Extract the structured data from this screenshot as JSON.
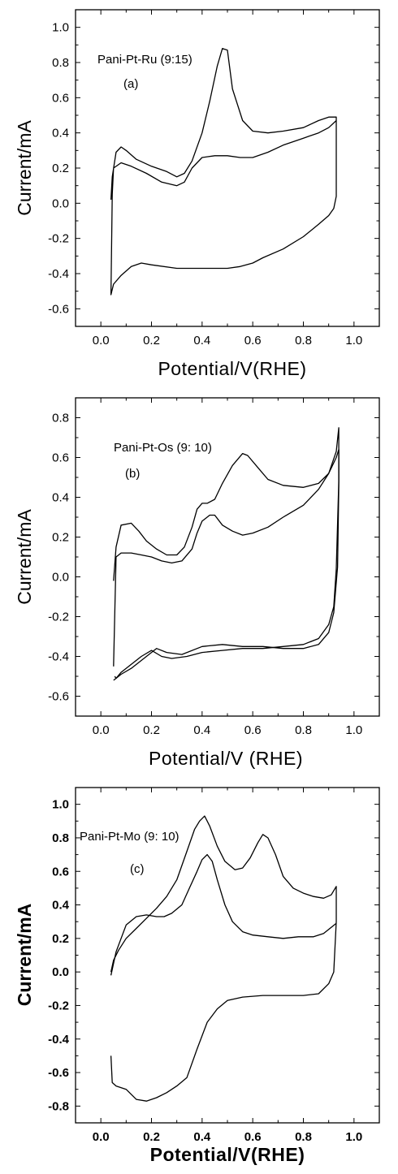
{
  "chart_data": [
    {
      "type": "line",
      "panel": "(a)",
      "annotation": "Pani-Pt-Ru (9:15)",
      "panel_label": "(a)",
      "xlabel": "Potential/V(RHE)",
      "ylabel": "Current/mA",
      "xlim": [
        -0.1,
        1.1
      ],
      "ylim": [
        -0.7,
        1.1
      ],
      "xticks": [
        0.0,
        0.2,
        0.4,
        0.6,
        0.8,
        1.0
      ],
      "xtick_labels": [
        "0.0",
        "0.2",
        "0.4",
        "0.6",
        "0.8",
        "1.0"
      ],
      "yticks": [
        -0.6,
        -0.4,
        -0.2,
        0.0,
        0.2,
        0.4,
        0.6,
        0.8,
        1.0
      ],
      "ytick_labels": [
        "-0.6",
        "-0.4",
        "-0.2",
        "0.0",
        "0.2",
        "0.4",
        "0.6",
        "0.8",
        "1.0"
      ],
      "bold_labels": false,
      "grid": false,
      "series": [
        {
          "x": [
            0.04,
            0.045,
            0.06,
            0.08,
            0.1,
            0.14,
            0.2,
            0.26,
            0.3,
            0.33,
            0.36,
            0.4,
            0.43,
            0.46,
            0.48,
            0.5,
            0.52,
            0.56,
            0.6,
            0.66,
            0.72,
            0.8,
            0.86,
            0.9,
            0.93,
            0.93,
            0.92,
            0.9,
            0.86,
            0.8,
            0.72,
            0.64,
            0.6,
            0.55,
            0.5,
            0.4,
            0.3,
            0.2,
            0.16,
            0.12,
            0.08,
            0.05,
            0.04,
            0.045,
            0.05,
            0.08,
            0.12,
            0.18,
            0.24,
            0.3,
            0.33,
            0.36,
            0.4,
            0.45,
            0.5,
            0.55,
            0.6,
            0.66,
            0.72,
            0.8,
            0.86,
            0.9,
            0.93
          ],
          "y": [
            0.02,
            0.15,
            0.29,
            0.32,
            0.3,
            0.25,
            0.21,
            0.18,
            0.15,
            0.17,
            0.24,
            0.4,
            0.58,
            0.78,
            0.88,
            0.87,
            0.65,
            0.47,
            0.41,
            0.4,
            0.41,
            0.43,
            0.47,
            0.49,
            0.49,
            0.04,
            -0.03,
            -0.07,
            -0.12,
            -0.19,
            -0.26,
            -0.31,
            -0.34,
            -0.36,
            -0.37,
            -0.37,
            -0.37,
            -0.35,
            -0.34,
            -0.36,
            -0.41,
            -0.46,
            -0.52,
            0.05,
            0.2,
            0.23,
            0.21,
            0.17,
            0.12,
            0.1,
            0.12,
            0.2,
            0.26,
            0.27,
            0.27,
            0.26,
            0.26,
            0.29,
            0.33,
            0.37,
            0.4,
            0.43,
            0.47
          ]
        }
      ]
    },
    {
      "type": "line",
      "panel": "(b)",
      "annotation": "Pani-Pt-Os (9: 10)",
      "panel_label": "(b)",
      "xlabel": "Potential/V (RHE)",
      "ylabel": "Current/mA",
      "xlim": [
        -0.1,
        1.1
      ],
      "ylim": [
        -0.7,
        0.9
      ],
      "xticks": [
        0.0,
        0.2,
        0.4,
        0.6,
        0.8,
        1.0
      ],
      "xtick_labels": [
        "0.0",
        "0.2",
        "0.4",
        "0.6",
        "0.8",
        "1.0"
      ],
      "yticks": [
        -0.6,
        -0.4,
        -0.2,
        0.0,
        0.2,
        0.4,
        0.6,
        0.8
      ],
      "ytick_labels": [
        "-0.6",
        "-0.4",
        "-0.2",
        "0.0",
        "0.2",
        "0.4",
        "0.6",
        "0.8"
      ],
      "bold_labels": false,
      "grid": false,
      "series": [
        {
          "x": [
            0.05,
            0.06,
            0.08,
            0.12,
            0.15,
            0.18,
            0.22,
            0.26,
            0.3,
            0.33,
            0.36,
            0.38,
            0.4,
            0.42,
            0.45,
            0.48,
            0.52,
            0.56,
            0.58,
            0.62,
            0.66,
            0.72,
            0.8,
            0.86,
            0.9,
            0.93,
            0.94,
            0.94,
            0.935,
            0.92,
            0.9,
            0.86,
            0.8,
            0.72,
            0.64,
            0.56,
            0.48,
            0.4,
            0.32,
            0.26,
            0.22,
            0.18,
            0.12,
            0.08,
            0.06,
            0.055
          ],
          "y": [
            -0.02,
            0.15,
            0.26,
            0.27,
            0.23,
            0.18,
            0.14,
            0.11,
            0.11,
            0.15,
            0.25,
            0.34,
            0.37,
            0.37,
            0.39,
            0.47,
            0.56,
            0.62,
            0.61,
            0.55,
            0.49,
            0.46,
            0.45,
            0.47,
            0.52,
            0.63,
            0.75,
            0.45,
            0.05,
            -0.18,
            -0.28,
            -0.34,
            -0.36,
            -0.36,
            -0.35,
            -0.35,
            -0.34,
            -0.35,
            -0.39,
            -0.38,
            -0.36,
            -0.4,
            -0.46,
            -0.49,
            -0.51,
            -0.5
          ]
        },
        {
          "x": [
            0.05,
            0.06,
            0.08,
            0.12,
            0.16,
            0.2,
            0.24,
            0.28,
            0.32,
            0.36,
            0.38,
            0.4,
            0.43,
            0.45,
            0.48,
            0.52,
            0.56,
            0.6,
            0.66,
            0.72,
            0.8,
            0.86,
            0.9,
            0.93,
            0.94,
            0.94,
            0.93,
            0.92,
            0.9,
            0.86,
            0.8,
            0.72,
            0.64,
            0.56,
            0.48,
            0.4,
            0.34,
            0.28,
            0.24,
            0.2,
            0.16,
            0.12,
            0.08,
            0.06,
            0.05
          ],
          "y": [
            -0.45,
            0.1,
            0.12,
            0.12,
            0.11,
            0.1,
            0.08,
            0.07,
            0.08,
            0.14,
            0.22,
            0.28,
            0.31,
            0.31,
            0.26,
            0.23,
            0.21,
            0.22,
            0.25,
            0.3,
            0.36,
            0.44,
            0.52,
            0.6,
            0.64,
            0.48,
            0.04,
            -0.15,
            -0.24,
            -0.31,
            -0.34,
            -0.35,
            -0.36,
            -0.36,
            -0.37,
            -0.38,
            -0.4,
            -0.41,
            -0.4,
            -0.37,
            -0.4,
            -0.44,
            -0.48,
            -0.51,
            -0.52
          ]
        }
      ]
    },
    {
      "type": "line",
      "panel": "(c)",
      "annotation": "Pani-Pt-Mo (9: 10)",
      "panel_label": "(c)",
      "xlabel": "Potential/V(RHE)",
      "ylabel": "Current/mA",
      "xlim": [
        -0.1,
        1.1
      ],
      "ylim": [
        -0.9,
        1.1
      ],
      "xticks": [
        0.0,
        0.2,
        0.4,
        0.6,
        0.8,
        1.0
      ],
      "xtick_labels": [
        "0.0",
        "0.2",
        "0.4",
        "0.6",
        "0.8",
        "1.0"
      ],
      "yticks": [
        -0.8,
        -0.6,
        -0.4,
        -0.2,
        0.0,
        0.2,
        0.4,
        0.6,
        0.8,
        1.0
      ],
      "ytick_labels": [
        "-0.8",
        "-0.6",
        "-0.4",
        "-0.2",
        "0.0",
        "0.2",
        "0.4",
        "0.6",
        "0.8",
        "1.0"
      ],
      "bold_labels": true,
      "grid": false,
      "series": [
        {
          "x": [
            0.04,
            0.05,
            0.07,
            0.1,
            0.14,
            0.18,
            0.22,
            0.26,
            0.3,
            0.34,
            0.37,
            0.39,
            0.41,
            0.43,
            0.46,
            0.49,
            0.53,
            0.56,
            0.59,
            0.62,
            0.64,
            0.66,
            0.69,
            0.72,
            0.76,
            0.8,
            0.84,
            0.88,
            0.91,
            0.93,
            0.93,
            0.92,
            0.9,
            0.86,
            0.8,
            0.72,
            0.64,
            0.56,
            0.5,
            0.46,
            0.42,
            0.38,
            0.34,
            0.3,
            0.26,
            0.22,
            0.18,
            0.14,
            0.1,
            0.06,
            0.045,
            0.04
          ],
          "y": [
            0.0,
            0.07,
            0.13,
            0.2,
            0.26,
            0.32,
            0.38,
            0.45,
            0.55,
            0.72,
            0.85,
            0.9,
            0.93,
            0.87,
            0.75,
            0.66,
            0.61,
            0.62,
            0.68,
            0.77,
            0.82,
            0.8,
            0.7,
            0.57,
            0.5,
            0.47,
            0.45,
            0.44,
            0.46,
            0.51,
            0.3,
            0.0,
            -0.07,
            -0.13,
            -0.14,
            -0.14,
            -0.14,
            -0.15,
            -0.17,
            -0.22,
            -0.3,
            -0.46,
            -0.63,
            -0.68,
            -0.72,
            -0.75,
            -0.77,
            -0.76,
            -0.7,
            -0.68,
            -0.66,
            -0.5
          ]
        },
        {
          "x": [
            0.04,
            0.06,
            0.08,
            0.1,
            0.14,
            0.18,
            0.22,
            0.25,
            0.28,
            0.32,
            0.35,
            0.38,
            0.4,
            0.42,
            0.44,
            0.46,
            0.49,
            0.52,
            0.56,
            0.6,
            0.66,
            0.72,
            0.78,
            0.84,
            0.88,
            0.93
          ],
          "y": [
            -0.02,
            0.12,
            0.2,
            0.28,
            0.33,
            0.34,
            0.33,
            0.33,
            0.35,
            0.4,
            0.5,
            0.6,
            0.67,
            0.7,
            0.66,
            0.55,
            0.4,
            0.3,
            0.24,
            0.22,
            0.21,
            0.2,
            0.21,
            0.21,
            0.23,
            0.29
          ]
        }
      ]
    }
  ]
}
